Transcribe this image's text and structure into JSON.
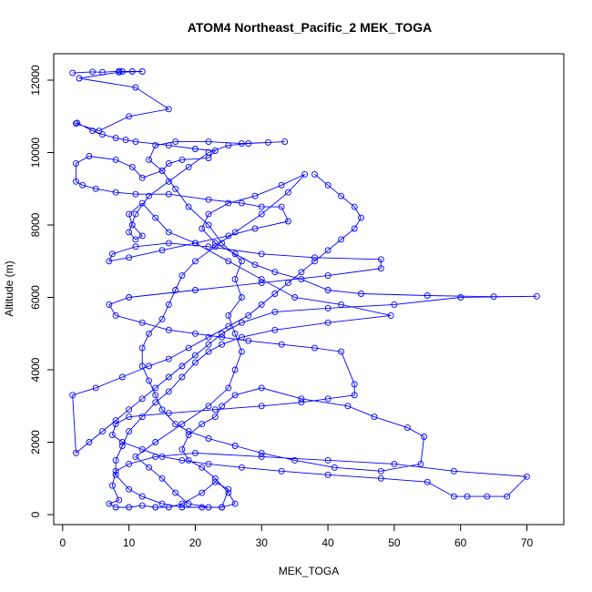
{
  "chart_data": {
    "type": "line",
    "title": "ATOM4 Northeast_Pacific_2 MEK_TOGA",
    "xlabel": "MEK_TOGA",
    "ylabel": "Altitude (m)",
    "xlim": [
      0,
      75
    ],
    "ylim": [
      0,
      12500
    ],
    "x_ticks": [
      0,
      10,
      20,
      30,
      40,
      50,
      60,
      70
    ],
    "y_ticks": [
      0,
      2000,
      4000,
      6000,
      8000,
      10000,
      12000
    ],
    "grid": false,
    "series_color": "#0000ff",
    "series": [
      {
        "points": [
          [
            1.5,
            12200
          ],
          [
            4.5,
            12230
          ],
          [
            6,
            12220
          ],
          [
            8.5,
            12250
          ],
          [
            9,
            12240
          ],
          [
            10.5,
            12240
          ],
          [
            12,
            12240
          ],
          [
            8.5,
            12220
          ],
          [
            2.5,
            12050
          ],
          [
            11,
            11800
          ],
          [
            16,
            11200
          ],
          [
            10,
            11000
          ],
          [
            5.5,
            10600
          ],
          [
            2,
            10800
          ],
          [
            2.2,
            10820
          ],
          [
            4.5,
            10600
          ],
          [
            6,
            10500
          ],
          [
            8,
            10400
          ],
          [
            9.5,
            10350
          ],
          [
            11,
            10300
          ],
          [
            16,
            10200
          ],
          [
            20,
            10100
          ],
          [
            23,
            10050
          ],
          [
            22,
            9850
          ],
          [
            18,
            9800
          ],
          [
            16,
            9700
          ],
          [
            15,
            9500
          ],
          [
            12,
            9300
          ],
          [
            10.5,
            9600
          ],
          [
            8,
            9800
          ],
          [
            4,
            9900
          ],
          [
            2,
            9700
          ],
          [
            2,
            9200
          ],
          [
            3,
            9100
          ],
          [
            5,
            9000
          ],
          [
            8,
            8900
          ],
          [
            11,
            8850
          ],
          [
            16,
            8850
          ],
          [
            22,
            8700
          ],
          [
            27,
            8600
          ],
          [
            30,
            8500
          ],
          [
            33,
            8500
          ],
          [
            34,
            8100
          ],
          [
            29,
            7900
          ],
          [
            25,
            7700
          ],
          [
            20,
            7500
          ],
          [
            15,
            7300
          ],
          [
            10,
            7100
          ],
          [
            7,
            7000
          ],
          [
            7.5,
            7200
          ],
          [
            11,
            7400
          ],
          [
            16,
            7500
          ],
          [
            22,
            7400
          ],
          [
            30,
            7200
          ],
          [
            38,
            7100
          ],
          [
            48,
            7050
          ],
          [
            48,
            6800
          ],
          [
            40,
            6600
          ],
          [
            30,
            6400
          ],
          [
            20,
            6200
          ],
          [
            10,
            6000
          ],
          [
            7,
            5800
          ],
          [
            8,
            5500
          ],
          [
            12,
            5300
          ],
          [
            16,
            5100
          ],
          [
            20,
            5000
          ],
          [
            24,
            4900
          ],
          [
            28,
            4800
          ],
          [
            33,
            4700
          ],
          [
            38,
            4600
          ],
          [
            42,
            4500
          ],
          [
            44,
            3600
          ],
          [
            44,
            3300
          ],
          [
            40,
            3200
          ],
          [
            36,
            3100
          ],
          [
            30,
            3000
          ],
          [
            23,
            2900
          ],
          [
            16,
            2800
          ],
          [
            10,
            2700
          ],
          [
            8,
            2500
          ],
          [
            7.5,
            2200
          ],
          [
            9,
            2000
          ],
          [
            12,
            1800
          ],
          [
            15,
            1600
          ],
          [
            18,
            1500
          ],
          [
            22,
            1400
          ],
          [
            27,
            1300
          ],
          [
            33,
            1200
          ],
          [
            40,
            1100
          ],
          [
            48,
            1000
          ],
          [
            55,
            900
          ],
          [
            59,
            500
          ],
          [
            61,
            500
          ],
          [
            64,
            500
          ],
          [
            67,
            500
          ],
          [
            70,
            1050
          ],
          [
            59,
            1200
          ],
          [
            50,
            1400
          ],
          [
            40,
            1500
          ],
          [
            30,
            1600
          ],
          [
            20,
            1700
          ],
          [
            14,
            1600
          ],
          [
            10,
            1400
          ],
          [
            8,
            1200
          ],
          [
            7.5,
            800
          ],
          [
            8.5,
            400
          ],
          [
            7,
            300
          ],
          [
            8,
            200
          ],
          [
            10,
            200
          ],
          [
            12,
            250
          ],
          [
            14,
            200
          ],
          [
            16,
            200
          ],
          [
            18,
            300
          ],
          [
            21,
            600
          ],
          [
            23,
            900
          ],
          [
            25,
            700
          ],
          [
            24,
            200
          ],
          [
            22,
            200
          ],
          [
            19,
            300
          ],
          [
            17,
            600
          ],
          [
            15,
            1000
          ],
          [
            13,
            1300
          ],
          [
            11,
            1600
          ],
          [
            14,
            2000
          ],
          [
            18,
            2500
          ],
          [
            22,
            3000
          ],
          [
            25,
            3500
          ],
          [
            26,
            4000
          ],
          [
            27,
            4500
          ],
          [
            26,
            5000
          ],
          [
            25,
            5500
          ],
          [
            27,
            6000
          ],
          [
            26,
            6500
          ],
          [
            27,
            7000
          ],
          [
            24,
            7500
          ],
          [
            22,
            8000
          ],
          [
            19,
            8500
          ],
          [
            17,
            9000
          ],
          [
            15,
            9500
          ],
          [
            13,
            9800
          ],
          [
            14,
            10200
          ],
          [
            17,
            10300
          ],
          [
            22,
            10300
          ],
          [
            27,
            10250
          ],
          [
            31,
            10280
          ],
          [
            33.5,
            10300
          ],
          [
            28,
            10250
          ],
          [
            25,
            10200
          ],
          [
            22,
            10000
          ],
          [
            19,
            9600
          ],
          [
            16,
            9200
          ],
          [
            13,
            8800
          ],
          [
            11,
            8300
          ],
          [
            10,
            7800
          ],
          [
            11,
            7600
          ],
          [
            12,
            7700
          ],
          [
            10.5,
            8000
          ],
          [
            10,
            8300
          ],
          [
            12,
            8600
          ],
          [
            14,
            8200
          ],
          [
            16,
            7800
          ],
          [
            20,
            7500
          ],
          [
            25,
            7000
          ],
          [
            30,
            6500
          ],
          [
            35,
            6000
          ],
          [
            42,
            5800
          ],
          [
            49.5,
            5500
          ],
          [
            40,
            5300
          ],
          [
            32,
            5100
          ],
          [
            27,
            4900
          ],
          [
            24,
            4700
          ],
          [
            22,
            4500
          ],
          [
            20,
            4200
          ],
          [
            18,
            3800
          ],
          [
            16,
            3400
          ],
          [
            14,
            3100
          ],
          [
            12,
            2700
          ],
          [
            10,
            2300
          ],
          [
            9,
            1900
          ],
          [
            8,
            1500
          ],
          [
            8,
            1100
          ],
          [
            10,
            700
          ],
          [
            12,
            500
          ],
          [
            15,
            300
          ],
          [
            18,
            200
          ],
          [
            21,
            200
          ],
          [
            24,
            200
          ],
          [
            26,
            300
          ],
          [
            25,
            600
          ],
          [
            23,
            1000
          ],
          [
            21,
            1300
          ],
          [
            19,
            1500
          ],
          [
            18,
            1800
          ],
          [
            19,
            2200
          ],
          [
            21,
            2500
          ],
          [
            23,
            2700
          ],
          [
            24,
            3000
          ],
          [
            26,
            3300
          ],
          [
            30,
            3500
          ],
          [
            36,
            3200
          ],
          [
            43,
            3000
          ],
          [
            47,
            2700
          ],
          [
            52,
            2400
          ],
          [
            54.5,
            2150
          ],
          [
            54,
            1400
          ],
          [
            48,
            1200
          ],
          [
            41,
            1300
          ],
          [
            35,
            1500
          ],
          [
            30,
            1700
          ],
          [
            26,
            1900
          ],
          [
            22,
            2100
          ],
          [
            19,
            2300
          ],
          [
            17,
            2500
          ],
          [
            15,
            2900
          ],
          [
            14,
            3300
          ],
          [
            13,
            3700
          ],
          [
            12,
            4100
          ],
          [
            12,
            4600
          ],
          [
            13,
            5000
          ],
          [
            15,
            5400
          ],
          [
            16,
            5800
          ],
          [
            17,
            6200
          ],
          [
            18,
            6600
          ],
          [
            20,
            7000
          ],
          [
            23,
            7400
          ],
          [
            26,
            7800
          ],
          [
            30,
            8300
          ],
          [
            34,
            8900
          ],
          [
            36.5,
            9400
          ],
          [
            33,
            9100
          ],
          [
            29,
            8800
          ],
          [
            25,
            8600
          ],
          [
            22,
            8300
          ],
          [
            21,
            7900
          ],
          [
            23,
            7500
          ],
          [
            26,
            7200
          ],
          [
            29,
            6900
          ],
          [
            32,
            6700
          ],
          [
            36,
            6500
          ],
          [
            40,
            6200
          ],
          [
            45,
            6100
          ],
          [
            55,
            6050
          ],
          [
            65,
            6020
          ],
          [
            71.5,
            6030
          ],
          [
            60,
            6000
          ],
          [
            50,
            5800
          ],
          [
            40,
            5700
          ],
          [
            32,
            5600
          ],
          [
            27,
            5300
          ],
          [
            24,
            5000
          ],
          [
            22,
            4700
          ],
          [
            20,
            4400
          ],
          [
            18,
            4100
          ],
          [
            16,
            3800
          ],
          [
            14,
            3500
          ],
          [
            12,
            3200
          ],
          [
            10,
            2900
          ],
          [
            8,
            2600
          ],
          [
            6,
            2300
          ],
          [
            4,
            2000
          ],
          [
            2,
            1700
          ],
          [
            1.5,
            3300
          ],
          [
            5,
            3500
          ],
          [
            9,
            3800
          ],
          [
            13,
            4100
          ],
          [
            16,
            4300
          ],
          [
            19,
            4600
          ],
          [
            22,
            4900
          ],
          [
            25,
            5200
          ],
          [
            28,
            5500
          ],
          [
            30,
            5800
          ],
          [
            32,
            6100
          ],
          [
            34,
            6400
          ],
          [
            36,
            6700
          ],
          [
            38,
            7000
          ],
          [
            40,
            7300
          ],
          [
            42,
            7600
          ],
          [
            44,
            7900
          ],
          [
            45,
            8200
          ],
          [
            44,
            8500
          ],
          [
            42,
            8800
          ],
          [
            40,
            9100
          ],
          [
            38,
            9400
          ]
        ]
      }
    ]
  }
}
